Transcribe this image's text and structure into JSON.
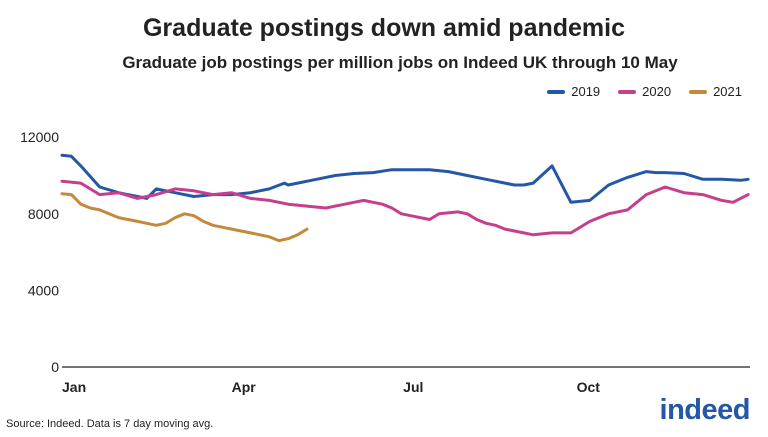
{
  "chart_data": {
    "type": "line",
    "title": "Graduate postings down amid pandemic",
    "subtitle": "Graduate job postings per million jobs on Indeed UK through 10 May",
    "xlabel": "",
    "ylabel": "",
    "ylim": [
      0,
      13000
    ],
    "yticks": [
      0,
      4000,
      8000,
      12000
    ],
    "xticks": [
      "Jan",
      "Apr",
      "Jul",
      "Oct"
    ],
    "xtick_days": [
      0,
      90,
      181,
      273
    ],
    "x_unit": "day of year",
    "x_range": [
      0,
      365
    ],
    "grid": false,
    "legend": "top-right",
    "series": [
      {
        "name": "2019",
        "color": "#2557a7",
        "x": [
          0,
          5,
          10,
          20,
          30,
          40,
          45,
          50,
          60,
          70,
          80,
          90,
          100,
          110,
          118,
          120,
          125,
          135,
          145,
          155,
          165,
          175,
          185,
          195,
          205,
          215,
          225,
          235,
          240,
          245,
          250,
          260,
          270,
          280,
          290,
          300,
          310,
          315,
          320,
          330,
          340,
          350,
          360,
          364
        ],
        "y": [
          11050,
          11000,
          10500,
          9400,
          9100,
          8900,
          8800,
          9300,
          9100,
          8900,
          9000,
          9000,
          9100,
          9300,
          9600,
          9500,
          9600,
          9800,
          10000,
          10100,
          10150,
          10300,
          10300,
          10300,
          10200,
          10000,
          9800,
          9600,
          9500,
          9500,
          9600,
          10500,
          8600,
          8700,
          9500,
          9900,
          10200,
          10150,
          10150,
          10100,
          9800,
          9800,
          9750,
          9800
        ]
      },
      {
        "name": "2020",
        "color": "#c63f8c",
        "x": [
          0,
          10,
          20,
          30,
          40,
          50,
          60,
          70,
          80,
          90,
          100,
          110,
          120,
          130,
          140,
          150,
          155,
          160,
          170,
          175,
          180,
          185,
          190,
          195,
          200,
          210,
          215,
          220,
          225,
          230,
          235,
          240,
          245,
          250,
          260,
          270,
          280,
          290,
          300,
          310,
          320,
          330,
          340,
          350,
          356,
          360,
          364
        ],
        "y": [
          9700,
          9600,
          9000,
          9100,
          8800,
          9000,
          9300,
          9200,
          9000,
          9100,
          8800,
          8700,
          8500,
          8400,
          8300,
          8500,
          8600,
          8700,
          8500,
          8300,
          8000,
          7900,
          7800,
          7700,
          8000,
          8100,
          8000,
          7700,
          7500,
          7400,
          7200,
          7100,
          7000,
          6900,
          7000,
          7000,
          7600,
          8000,
          8200,
          9000,
          9400,
          9100,
          9000,
          8700,
          8600,
          8800,
          9000
        ]
      },
      {
        "name": "2021",
        "color": "#c28a3a",
        "x": [
          0,
          5,
          10,
          15,
          20,
          25,
          30,
          35,
          40,
          45,
          50,
          55,
          60,
          65,
          70,
          75,
          80,
          85,
          90,
          95,
          100,
          105,
          110,
          115,
          120,
          125,
          130
        ],
        "y": [
          9050,
          9000,
          8500,
          8300,
          8200,
          8000,
          7800,
          7700,
          7600,
          7500,
          7400,
          7500,
          7800,
          8000,
          7900,
          7600,
          7400,
          7300,
          7200,
          7100,
          7000,
          6900,
          6800,
          6600,
          6700,
          6900,
          7200
        ]
      }
    ]
  },
  "source_text": "Source: Indeed. Data is 7 day moving avg.",
  "logo_text": "indeed"
}
